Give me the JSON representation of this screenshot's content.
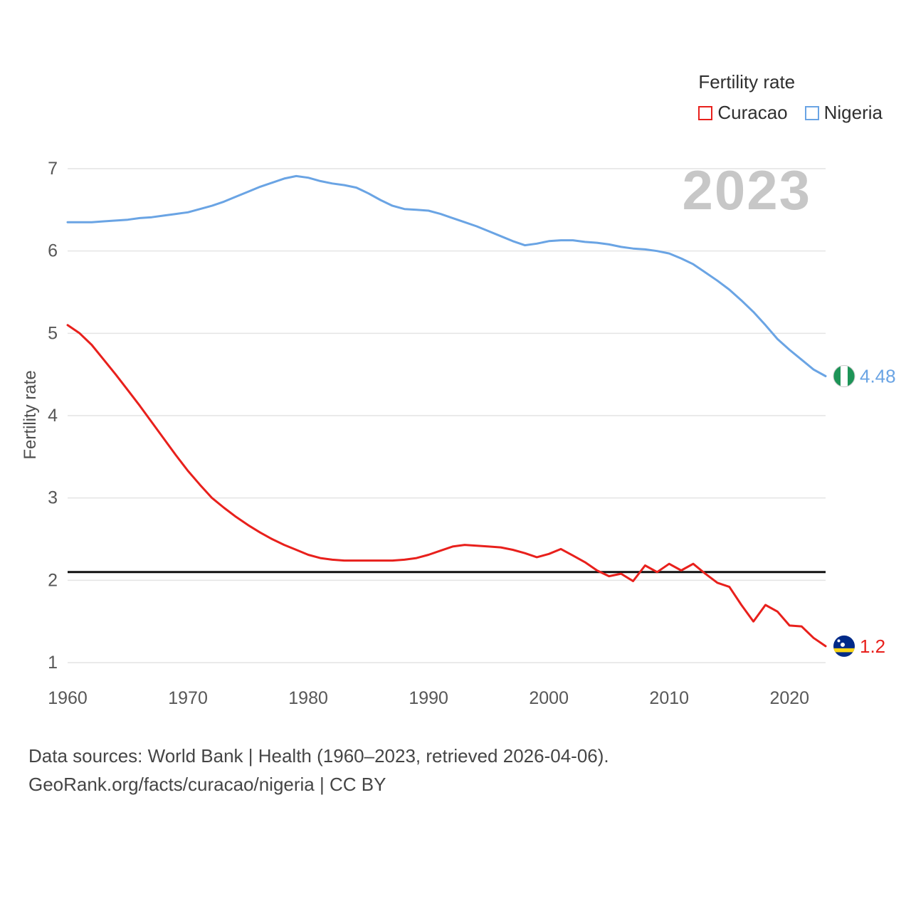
{
  "legend": {
    "title": "Fertility rate",
    "series": [
      {
        "label": "Curacao",
        "color": "#e8201c"
      },
      {
        "label": "Nigeria",
        "color": "#6aa4e4"
      }
    ]
  },
  "watermark": "2023",
  "footer": {
    "line1": "Data sources: World Bank | Health (1960–2023, retrieved 2026-04-06).",
    "line2": "GeoRank.org/facts/curacao/nigeria | CC BY"
  },
  "chart_data": {
    "type": "line",
    "title": "",
    "xlabel": "",
    "ylabel": "Fertility rate",
    "xlim": [
      1960,
      2023
    ],
    "ylim": [
      1,
      7
    ],
    "xticks": [
      1960,
      1970,
      1980,
      1990,
      2000,
      2010,
      2020
    ],
    "yticks": [
      1,
      2,
      3,
      4,
      5,
      6,
      7
    ],
    "grid": "horizontal",
    "legend_position": "top-right",
    "reference_line": {
      "y": 2.1,
      "color": "#111111",
      "meaning": "replacement-rate"
    },
    "x": [
      1960,
      1961,
      1962,
      1963,
      1964,
      1965,
      1966,
      1967,
      1968,
      1969,
      1970,
      1971,
      1972,
      1973,
      1974,
      1975,
      1976,
      1977,
      1978,
      1979,
      1980,
      1981,
      1982,
      1983,
      1984,
      1985,
      1986,
      1987,
      1988,
      1989,
      1990,
      1991,
      1992,
      1993,
      1994,
      1995,
      1996,
      1997,
      1998,
      1999,
      2000,
      2001,
      2002,
      2003,
      2004,
      2005,
      2006,
      2007,
      2008,
      2009,
      2010,
      2011,
      2012,
      2013,
      2014,
      2015,
      2016,
      2017,
      2018,
      2019,
      2020,
      2021,
      2022,
      2023
    ],
    "series": [
      {
        "name": "Curacao",
        "color": "#e8201c",
        "end_label": "1.2",
        "flag": "curacao",
        "values": [
          5.1,
          5.0,
          4.86,
          4.68,
          4.5,
          4.31,
          4.12,
          3.92,
          3.72,
          3.52,
          3.33,
          3.16,
          3.0,
          2.88,
          2.77,
          2.67,
          2.58,
          2.5,
          2.43,
          2.37,
          2.31,
          2.27,
          2.25,
          2.24,
          2.24,
          2.24,
          2.24,
          2.24,
          2.25,
          2.27,
          2.31,
          2.36,
          2.41,
          2.43,
          2.42,
          2.41,
          2.4,
          2.37,
          2.33,
          2.28,
          2.32,
          2.38,
          2.3,
          2.22,
          2.12,
          2.05,
          2.08,
          1.99,
          2.18,
          2.1,
          2.2,
          2.12,
          2.2,
          2.08,
          1.97,
          1.92,
          1.7,
          1.5,
          1.7,
          1.62,
          1.45,
          1.44,
          1.3,
          1.2
        ]
      },
      {
        "name": "Nigeria",
        "color": "#6aa4e4",
        "end_label": "4.48",
        "flag": "nigeria",
        "values": [
          6.35,
          6.35,
          6.35,
          6.36,
          6.37,
          6.38,
          6.4,
          6.41,
          6.43,
          6.45,
          6.47,
          6.51,
          6.55,
          6.6,
          6.66,
          6.72,
          6.78,
          6.83,
          6.88,
          6.91,
          6.89,
          6.85,
          6.82,
          6.8,
          6.77,
          6.7,
          6.62,
          6.55,
          6.51,
          6.5,
          6.49,
          6.45,
          6.4,
          6.35,
          6.3,
          6.24,
          6.18,
          6.12,
          6.07,
          6.09,
          6.12,
          6.13,
          6.13,
          6.11,
          6.1,
          6.08,
          6.05,
          6.03,
          6.02,
          6.0,
          5.97,
          5.91,
          5.84,
          5.74,
          5.64,
          5.53,
          5.4,
          5.26,
          5.1,
          4.93,
          4.8,
          4.68,
          4.56,
          4.48
        ]
      }
    ]
  }
}
